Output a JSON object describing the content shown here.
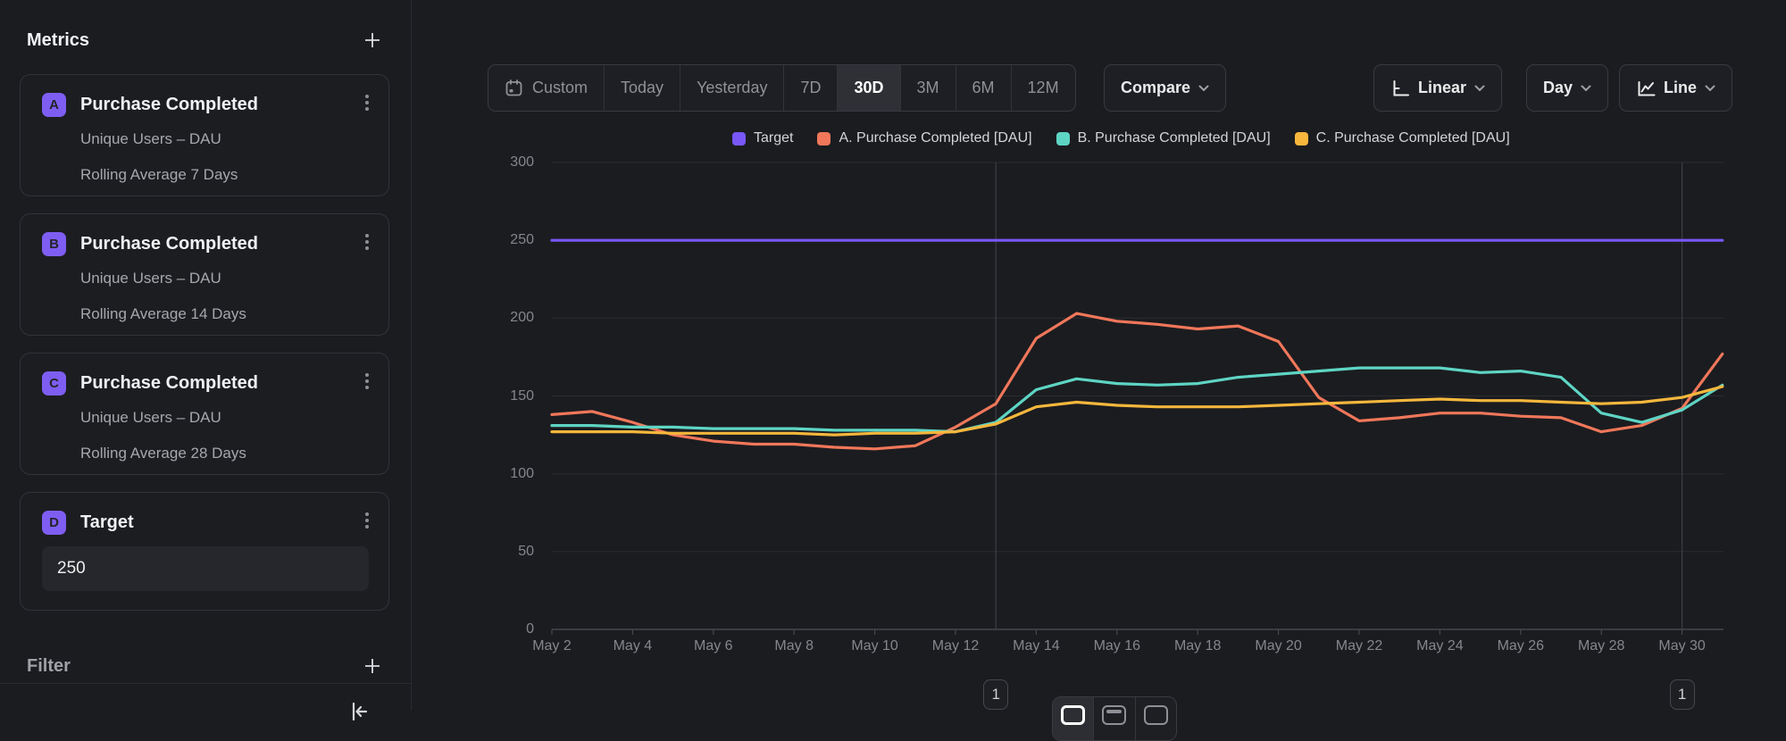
{
  "sidebar": {
    "title": "Metrics",
    "metrics": [
      {
        "badge": "A",
        "badge_color": "#7e5ef2",
        "title": "Purchase Completed",
        "measure": "Unique Users – DAU",
        "transform": "Rolling Average 7 Days"
      },
      {
        "badge": "B",
        "badge_color": "#7e5ef2",
        "title": "Purchase Completed",
        "measure": "Unique Users – DAU",
        "transform": "Rolling Average 14 Days"
      },
      {
        "badge": "C",
        "badge_color": "#7e5ef2",
        "title": "Purchase Completed",
        "measure": "Unique Users – DAU",
        "transform": "Rolling Average 28 Days"
      },
      {
        "badge": "D",
        "badge_color": "#7e5ef2",
        "title": "Target",
        "value": "250"
      }
    ],
    "filter": {
      "title": "Filter"
    }
  },
  "toolbar": {
    "date_ranges": [
      "Custom",
      "Today",
      "Yesterday",
      "7D",
      "30D",
      "3M",
      "6M",
      "12M"
    ],
    "active_range": "30D",
    "compare_label": "Compare",
    "y_scale_label": "Linear",
    "granularity_label": "Day",
    "chart_type_label": "Line"
  },
  "legend": [
    {
      "label": "Target",
      "color": "#7857f7"
    },
    {
      "label": "A. Purchase Completed [DAU]",
      "color": "#f0775a"
    },
    {
      "label": "B. Purchase Completed [DAU]",
      "color": "#5ed5c4"
    },
    {
      "label": "C. Purchase Completed [DAU]",
      "color": "#f6b73c"
    }
  ],
  "chart_data": {
    "type": "line",
    "x": [
      "May 2",
      "May 3",
      "May 4",
      "May 5",
      "May 6",
      "May 7",
      "May 8",
      "May 9",
      "May 10",
      "May 11",
      "May 12",
      "May 13",
      "May 14",
      "May 15",
      "May 16",
      "May 17",
      "May 18",
      "May 19",
      "May 20",
      "May 21",
      "May 22",
      "May 23",
      "May 24",
      "May 25",
      "May 26",
      "May 27",
      "May 28",
      "May 29",
      "May 30",
      "May 31"
    ],
    "xtick_labels": [
      "May 2",
      "May 4",
      "May 6",
      "May 8",
      "May 10",
      "May 12",
      "May 14",
      "May 16",
      "May 18",
      "May 20",
      "May 22",
      "May 24",
      "May 26",
      "May 28",
      "May 30"
    ],
    "yticks": [
      0,
      50,
      100,
      150,
      200,
      250,
      300
    ],
    "ylim": [
      0,
      300
    ],
    "grid": true,
    "legend_position": "top",
    "series": [
      {
        "name": "Target",
        "color": "#7857f7",
        "values": [
          250,
          250,
          250,
          250,
          250,
          250,
          250,
          250,
          250,
          250,
          250,
          250,
          250,
          250,
          250,
          250,
          250,
          250,
          250,
          250,
          250,
          250,
          250,
          250,
          250,
          250,
          250,
          250,
          250,
          250
        ]
      },
      {
        "name": "A. Purchase Completed [DAU]",
        "color": "#f0775a",
        "values": [
          138,
          140,
          133,
          125,
          121,
          119,
          119,
          117,
          116,
          118,
          130,
          145,
          187,
          203,
          198,
          196,
          193,
          195,
          185,
          149,
          134,
          136,
          139,
          139,
          137,
          136,
          127,
          131,
          142,
          177
        ]
      },
      {
        "name": "B. Purchase Completed [DAU]",
        "color": "#5ed5c4",
        "values": [
          131,
          131,
          130,
          130,
          129,
          129,
          129,
          128,
          128,
          128,
          127,
          133,
          154,
          161,
          158,
          157,
          158,
          162,
          164,
          166,
          168,
          168,
          168,
          165,
          166,
          162,
          139,
          133,
          141,
          157
        ]
      },
      {
        "name": "C. Purchase Completed [DAU]",
        "color": "#f6b73c",
        "values": [
          127,
          127,
          127,
          126,
          126,
          126,
          126,
          125,
          126,
          126,
          127,
          132,
          143,
          146,
          144,
          143,
          143,
          143,
          144,
          145,
          146,
          147,
          148,
          147,
          147,
          146,
          145,
          146,
          149,
          156
        ]
      }
    ],
    "annotations": [
      {
        "label": "1",
        "x": "May 13"
      },
      {
        "label": "1",
        "x": "May 30"
      }
    ]
  }
}
